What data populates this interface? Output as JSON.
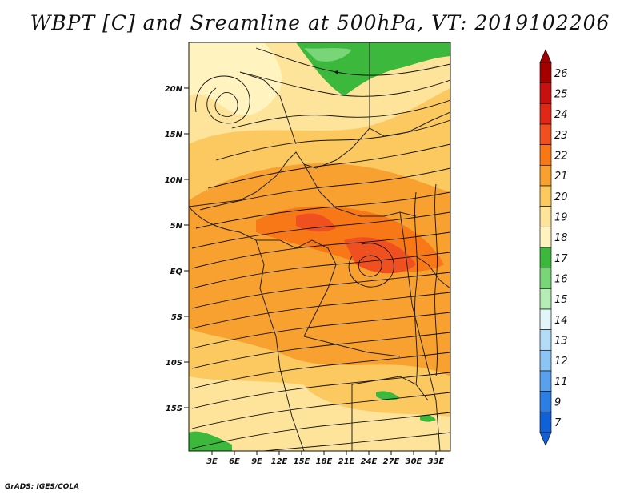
{
  "title": "WBPT [C] and Sreamline at 500hPa, VT: 2019102206",
  "footer": "GrADS: IGES/COLA",
  "map": {
    "lat_labels": [
      "20N",
      "15N",
      "10N",
      "5N",
      "EQ",
      "5S",
      "10S",
      "15S"
    ],
    "lon_labels": [
      "3E",
      "6E",
      "9E",
      "12E",
      "15E",
      "18E",
      "21E",
      "24E",
      "27E",
      "30E",
      "33E"
    ],
    "field": "WBPT",
    "level": "500hPa"
  },
  "colorbar": {
    "labels": [
      "26",
      "25",
      "24",
      "23",
      "22",
      "21",
      "20",
      "19",
      "18",
      "17",
      "16",
      "15",
      "14",
      "13",
      "12",
      "11",
      "9",
      "7"
    ],
    "colors": [
      "#a50000",
      "#c81010",
      "#e02818",
      "#f05020",
      "#f87818",
      "#f8a030",
      "#fcc860",
      "#fde49a",
      "#fff4c0",
      "#3cb83c",
      "#78d678",
      "#b6ecb6",
      "#e2f6fa",
      "#b4dcf8",
      "#8cc4f4",
      "#5aa0ec",
      "#2c7ee4",
      "#1060d8"
    ]
  }
}
